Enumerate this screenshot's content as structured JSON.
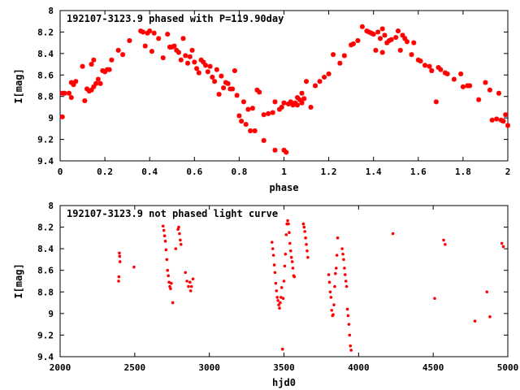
{
  "chart_data": [
    {
      "type": "scatter",
      "title": "192107-3123.9 phased with P=119.90day",
      "xlabel": "phase",
      "ylabel": "I[mag]",
      "xlim": [
        0,
        2
      ],
      "ylim": [
        8,
        9.4
      ],
      "y_inverted": true,
      "xticks": [
        "0",
        "0.2",
        "0.4",
        "0.6",
        "0.8",
        "1",
        "1.2",
        "1.4",
        "1.6",
        "1.8",
        "2"
      ],
      "yticks": [
        "8",
        "8.2",
        "8.4",
        "8.6",
        "8.8",
        "9",
        "9.2",
        "9.4"
      ],
      "marker": "star",
      "color": "#ff0000",
      "grid": false,
      "points": [
        [
          0.01,
          8.77
        ],
        [
          0.02,
          8.77
        ],
        [
          0.01,
          8.99
        ],
        [
          0.04,
          8.77
        ],
        [
          0.05,
          8.67
        ],
        [
          0.05,
          8.81
        ],
        [
          0.06,
          8.69
        ],
        [
          0.07,
          8.66
        ],
        [
          0.1,
          8.52
        ],
        [
          0.11,
          8.84
        ],
        [
          0.12,
          8.73
        ],
        [
          0.13,
          8.75
        ],
        [
          0.14,
          8.74
        ],
        [
          0.14,
          8.5
        ],
        [
          0.15,
          8.46
        ],
        [
          0.15,
          8.71
        ],
        [
          0.16,
          8.68
        ],
        [
          0.17,
          8.64
        ],
        [
          0.18,
          8.68
        ],
        [
          0.19,
          8.56
        ],
        [
          0.2,
          8.57
        ],
        [
          0.21,
          8.55
        ],
        [
          0.22,
          8.55
        ],
        [
          0.23,
          8.46
        ],
        [
          0.26,
          8.37
        ],
        [
          0.28,
          8.41
        ],
        [
          0.31,
          8.28
        ],
        [
          0.36,
          8.19
        ],
        [
          0.37,
          8.2
        ],
        [
          0.38,
          8.33
        ],
        [
          0.39,
          8.21
        ],
        [
          0.4,
          8.19
        ],
        [
          0.41,
          8.38
        ],
        [
          0.42,
          8.21
        ],
        [
          0.44,
          8.26
        ],
        [
          0.46,
          8.44
        ],
        [
          0.48,
          8.22
        ],
        [
          0.49,
          8.34
        ],
        [
          0.5,
          8.34
        ],
        [
          0.51,
          8.33
        ],
        [
          0.52,
          8.37
        ],
        [
          0.53,
          8.39
        ],
        [
          0.54,
          8.46
        ],
        [
          0.55,
          8.26
        ],
        [
          0.56,
          8.42
        ],
        [
          0.57,
          8.49
        ],
        [
          0.58,
          8.43
        ],
        [
          0.59,
          8.37
        ],
        [
          0.6,
          8.48
        ],
        [
          0.61,
          8.54
        ],
        [
          0.62,
          8.58
        ],
        [
          0.63,
          8.46
        ],
        [
          0.64,
          8.48
        ],
        [
          0.65,
          8.51
        ],
        [
          0.66,
          8.57
        ],
        [
          0.67,
          8.52
        ],
        [
          0.68,
          8.62
        ],
        [
          0.69,
          8.66
        ],
        [
          0.7,
          8.55
        ],
        [
          0.71,
          8.78
        ],
        [
          0.72,
          8.61
        ],
        [
          0.73,
          8.72
        ],
        [
          0.74,
          8.67
        ],
        [
          0.75,
          8.68
        ],
        [
          0.76,
          8.73
        ],
        [
          0.77,
          8.73
        ],
        [
          0.78,
          8.56
        ],
        [
          0.79,
          8.79
        ],
        [
          0.8,
          8.98
        ],
        [
          0.81,
          9.03
        ],
        [
          0.82,
          8.85
        ],
        [
          0.83,
          9.06
        ],
        [
          0.84,
          8.92
        ],
        [
          0.85,
          9.12
        ],
        [
          0.86,
          8.91
        ],
        [
          0.87,
          9.12
        ],
        [
          0.88,
          8.74
        ],
        [
          0.89,
          8.76
        ],
        [
          0.91,
          8.97
        ],
        [
          0.91,
          9.21
        ],
        [
          0.93,
          8.96
        ],
        [
          0.95,
          8.95
        ],
        [
          0.96,
          8.85
        ],
        [
          0.96,
          9.3
        ],
        [
          0.98,
          8.92
        ],
        [
          0.99,
          8.9
        ],
        [
          1.0,
          9.3
        ],
        [
          1.0,
          8.86
        ],
        [
          1.01,
          9.32
        ],
        [
          1.02,
          8.87
        ],
        [
          1.03,
          8.85
        ],
        [
          1.04,
          8.88
        ],
        [
          1.05,
          8.86
        ],
        [
          1.06,
          8.81
        ],
        [
          1.06,
          8.88
        ],
        [
          1.07,
          8.83
        ],
        [
          1.08,
          8.77
        ],
        [
          1.08,
          8.86
        ],
        [
          1.09,
          8.82
        ],
        [
          1.1,
          8.66
        ],
        [
          1.12,
          8.9
        ],
        [
          1.14,
          8.7
        ],
        [
          1.16,
          8.66
        ],
        [
          1.18,
          8.62
        ],
        [
          1.2,
          8.59
        ],
        [
          1.22,
          8.41
        ],
        [
          1.25,
          8.49
        ],
        [
          1.27,
          8.42
        ],
        [
          1.3,
          8.32
        ],
        [
          1.31,
          8.31
        ],
        [
          1.33,
          8.28
        ],
        [
          1.35,
          8.15
        ],
        [
          1.37,
          8.19
        ],
        [
          1.38,
          8.2
        ],
        [
          1.39,
          8.21
        ],
        [
          1.4,
          8.22
        ],
        [
          1.41,
          8.37
        ],
        [
          1.42,
          8.2
        ],
        [
          1.43,
          8.26
        ],
        [
          1.44,
          8.17
        ],
        [
          1.44,
          8.39
        ],
        [
          1.45,
          8.23
        ],
        [
          1.46,
          8.3
        ],
        [
          1.47,
          8.28
        ],
        [
          1.48,
          8.27
        ],
        [
          1.5,
          8.25
        ],
        [
          1.51,
          8.19
        ],
        [
          1.52,
          8.37
        ],
        [
          1.53,
          8.23
        ],
        [
          1.54,
          8.26
        ],
        [
          1.55,
          8.29
        ],
        [
          1.57,
          8.41
        ],
        [
          1.58,
          8.3
        ],
        [
          1.6,
          8.46
        ],
        [
          1.61,
          8.47
        ],
        [
          1.63,
          8.51
        ],
        [
          1.65,
          8.52
        ],
        [
          1.66,
          8.56
        ],
        [
          1.68,
          8.85
        ],
        [
          1.69,
          8.53
        ],
        [
          1.7,
          8.55
        ],
        [
          1.72,
          8.58
        ],
        [
          1.73,
          8.59
        ],
        [
          1.76,
          8.64
        ],
        [
          1.79,
          8.59
        ],
        [
          1.8,
          8.71
        ],
        [
          1.82,
          8.7
        ],
        [
          1.83,
          8.7
        ],
        [
          1.87,
          8.83
        ],
        [
          1.9,
          8.67
        ],
        [
          1.92,
          8.74
        ],
        [
          1.93,
          9.02
        ],
        [
          1.95,
          9.01
        ],
        [
          1.96,
          8.77
        ],
        [
          1.97,
          9.02
        ],
        [
          1.98,
          9.03
        ],
        [
          1.99,
          8.97
        ],
        [
          2.0,
          9.07
        ]
      ]
    },
    {
      "type": "scatter",
      "title": "192107-3123.9 not phased light curve",
      "xlabel": "hjd0",
      "ylabel": "I[mag]",
      "xlim": [
        2000,
        5000
      ],
      "ylim": [
        8,
        9.4
      ],
      "y_inverted": true,
      "xticks": [
        "2000",
        "2500",
        "3000",
        "3500",
        "4000",
        "4500",
        "5000"
      ],
      "yticks": [
        "8",
        "8.2",
        "8.4",
        "8.6",
        "8.8",
        "9",
        "9.2",
        "9.4"
      ],
      "marker": "dot",
      "color": "#ff0000",
      "grid": false,
      "points": [
        [
          2392,
          8.7
        ],
        [
          2394,
          8.66
        ],
        [
          2397,
          8.44
        ],
        [
          2399,
          8.47
        ],
        [
          2401,
          8.52
        ],
        [
          2495,
          8.57
        ],
        [
          2690,
          8.19
        ],
        [
          2695,
          8.23
        ],
        [
          2700,
          8.28
        ],
        [
          2705,
          8.33
        ],
        [
          2710,
          8.41
        ],
        [
          2715,
          8.5
        ],
        [
          2720,
          8.6
        ],
        [
          2725,
          8.65
        ],
        [
          2730,
          8.71
        ],
        [
          2735,
          8.75
        ],
        [
          2740,
          8.77
        ],
        [
          2745,
          8.72
        ],
        [
          2755,
          8.9
        ],
        [
          2775,
          8.4
        ],
        [
          2790,
          8.22
        ],
        [
          2795,
          8.2
        ],
        [
          2800,
          8.26
        ],
        [
          2805,
          8.32
        ],
        [
          2810,
          8.36
        ],
        [
          2840,
          8.62
        ],
        [
          2850,
          8.7
        ],
        [
          2860,
          8.75
        ],
        [
          2870,
          8.71
        ],
        [
          2875,
          8.79
        ],
        [
          2880,
          8.75
        ],
        [
          2890,
          8.68
        ],
        [
          3420,
          8.34
        ],
        [
          3425,
          8.4
        ],
        [
          3430,
          8.46
        ],
        [
          3435,
          8.55
        ],
        [
          3440,
          8.62
        ],
        [
          3445,
          8.72
        ],
        [
          3450,
          8.79
        ],
        [
          3455,
          8.85
        ],
        [
          3460,
          8.88
        ],
        [
          3465,
          8.92
        ],
        [
          3470,
          8.95
        ],
        [
          3475,
          8.9
        ],
        [
          3480,
          8.85
        ],
        [
          3485,
          8.76
        ],
        [
          3490,
          9.33
        ],
        [
          3495,
          8.86
        ],
        [
          3500,
          8.7
        ],
        [
          3505,
          8.56
        ],
        [
          3510,
          8.45
        ],
        [
          3515,
          8.27
        ],
        [
          3520,
          8.17
        ],
        [
          3525,
          8.14
        ],
        [
          3530,
          8.17
        ],
        [
          3535,
          8.25
        ],
        [
          3540,
          8.35
        ],
        [
          3545,
          8.42
        ],
        [
          3550,
          8.48
        ],
        [
          3555,
          8.52
        ],
        [
          3560,
          8.58
        ],
        [
          3565,
          8.65
        ],
        [
          3570,
          8.66
        ],
        [
          3630,
          8.17
        ],
        [
          3635,
          8.2
        ],
        [
          3640,
          8.24
        ],
        [
          3645,
          8.3
        ],
        [
          3650,
          8.36
        ],
        [
          3655,
          8.42
        ],
        [
          3660,
          8.48
        ],
        [
          3800,
          8.64
        ],
        [
          3805,
          8.71
        ],
        [
          3810,
          8.8
        ],
        [
          3815,
          8.85
        ],
        [
          3820,
          8.97
        ],
        [
          3825,
          9.02
        ],
        [
          3830,
          9.01
        ],
        [
          3835,
          8.92
        ],
        [
          3840,
          8.75
        ],
        [
          3845,
          8.63
        ],
        [
          3850,
          8.58
        ],
        [
          3855,
          8.46
        ],
        [
          3860,
          8.3
        ],
        [
          3890,
          8.4
        ],
        [
          3895,
          8.45
        ],
        [
          3900,
          8.5
        ],
        [
          3905,
          8.58
        ],
        [
          3910,
          8.64
        ],
        [
          3915,
          8.7
        ],
        [
          3920,
          8.75
        ],
        [
          3925,
          8.96
        ],
        [
          3930,
          9.02
        ],
        [
          3935,
          9.1
        ],
        [
          3940,
          9.2
        ],
        [
          3945,
          9.3
        ],
        [
          3950,
          9.34
        ],
        [
          4230,
          8.26
        ],
        [
          4510,
          8.86
        ],
        [
          4570,
          8.32
        ],
        [
          4580,
          8.36
        ],
        [
          4780,
          9.07
        ],
        [
          4860,
          8.8
        ],
        [
          4880,
          9.03
        ],
        [
          4960,
          8.35
        ],
        [
          4970,
          8.38
        ]
      ]
    }
  ]
}
